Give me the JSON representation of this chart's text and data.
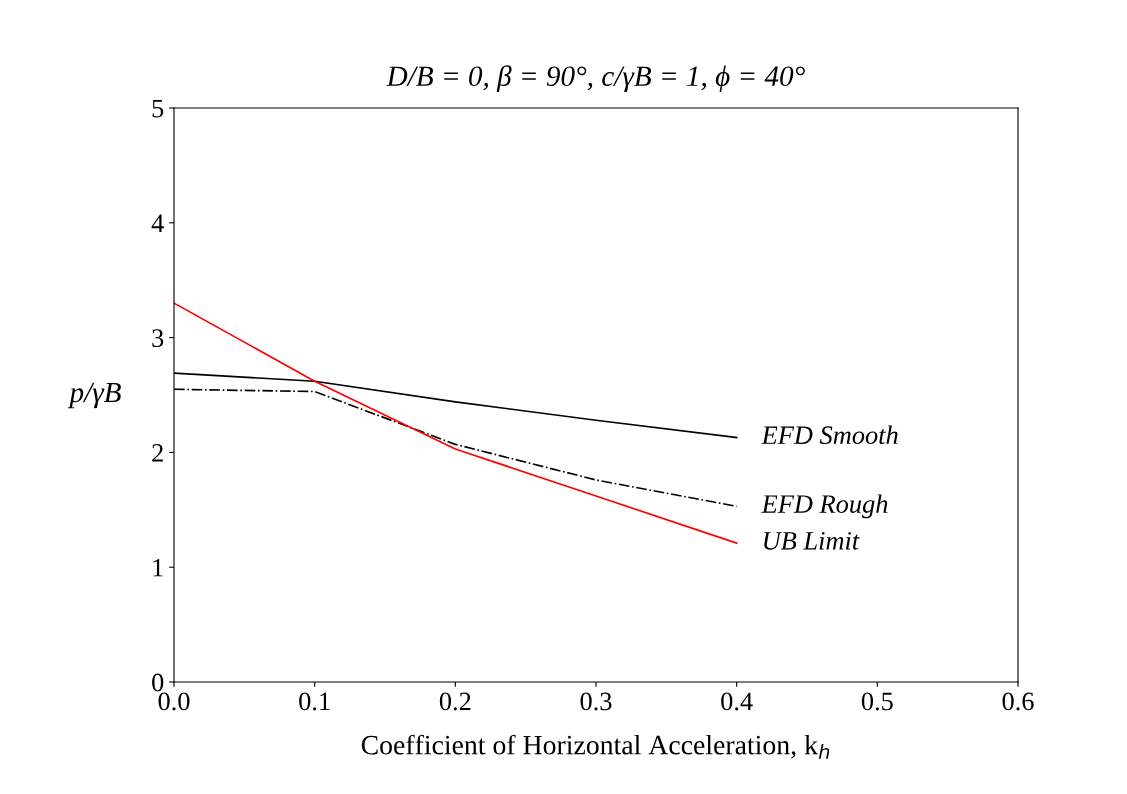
{
  "chart_data": {
    "type": "line",
    "title": "D/B = 0, β = 90°, c/γB = 1, ϕ = 40°",
    "xlabel": "Coefficient of Horizontal Acceleration, k$_{h}$",
    "ylabel": "p/γB",
    "x": [
      0,
      0.1,
      0.2,
      0.3,
      0.4
    ],
    "series": [
      {
        "name": "EFD Smooth",
        "color": "#000000",
        "line_style": "solid",
        "values": [
          2.69,
          2.62,
          2.44,
          2.28,
          2.13
        ]
      },
      {
        "name": "EFD Rough",
        "color": "#000000",
        "line_style": "dashdot",
        "values": [
          2.55,
          2.53,
          2.07,
          1.76,
          1.53
        ]
      },
      {
        "name": "UB Limit",
        "color": "#ff0000",
        "line_style": "solid",
        "values": [
          3.3,
          2.62,
          2.03,
          1.62,
          1.21
        ]
      }
    ],
    "xlim": [
      0,
      0.6
    ],
    "xticks": [
      {
        "value": 0,
        "label": "0.0"
      },
      0.1,
      0.2,
      0.3,
      0.4,
      0.5,
      0.6
    ],
    "ylim": [
      0,
      5
    ],
    "yticks": [
      0,
      1,
      2,
      3,
      4,
      5
    ],
    "grid": false,
    "legend": false,
    "marker": "none"
  }
}
